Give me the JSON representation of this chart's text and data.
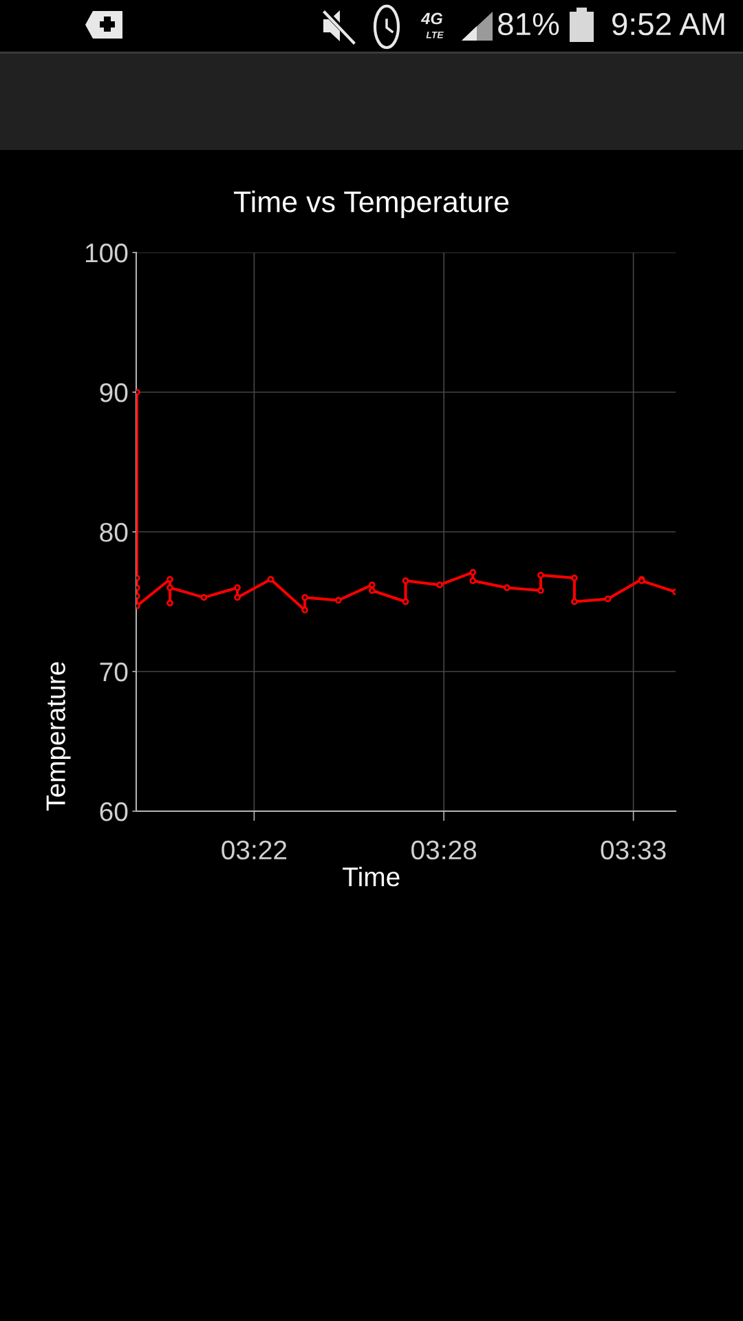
{
  "chart_data": {
    "type": "line",
    "title": "Time vs Temperature",
    "xlabel": "Time",
    "ylabel": "Temperature",
    "x": [
      3.3183,
      3.3183,
      3.3183,
      3.3183,
      3.3183,
      3.3343,
      3.3343,
      3.3343,
      3.3507,
      3.3669,
      3.3669,
      3.383,
      3.3995,
      3.3995,
      3.4157,
      3.432,
      3.432,
      3.4482,
      3.4482,
      3.4647,
      3.4807,
      3.4807,
      3.4972,
      3.5135,
      3.5135,
      3.5298,
      3.5298,
      3.546,
      3.5623,
      3.5623,
      3.5787
    ],
    "series": [
      {
        "color": "#ff0000",
        "values": [
          90.0,
          76.7,
          76.0,
          75.4,
          74.7,
          76.6,
          74.9,
          76.0,
          75.3,
          76.0,
          75.3,
          76.6,
          74.4,
          75.3,
          75.1,
          76.2,
          75.8,
          75.0,
          76.5,
          76.2,
          77.1,
          76.5,
          76.0,
          75.8,
          76.9,
          76.7,
          75.0,
          75.2,
          76.6,
          76.5,
          75.7
        ]
      }
    ],
    "xlim": [
      3.318,
      3.5787
    ],
    "xticks": [
      {
        "value": 3.375,
        "label": "03:22"
      },
      {
        "value": 3.4667,
        "label": "03:28"
      },
      {
        "value": 3.5583,
        "label": "03:33"
      }
    ],
    "ylim": [
      60,
      100
    ],
    "yticks": [
      60,
      70,
      80,
      90,
      100
    ],
    "grid": true,
    "marker": "circle",
    "line_style": "solid",
    "annotations": [
      "4G",
      "LTE",
      "81%",
      "9:52 AM"
    ]
  }
}
